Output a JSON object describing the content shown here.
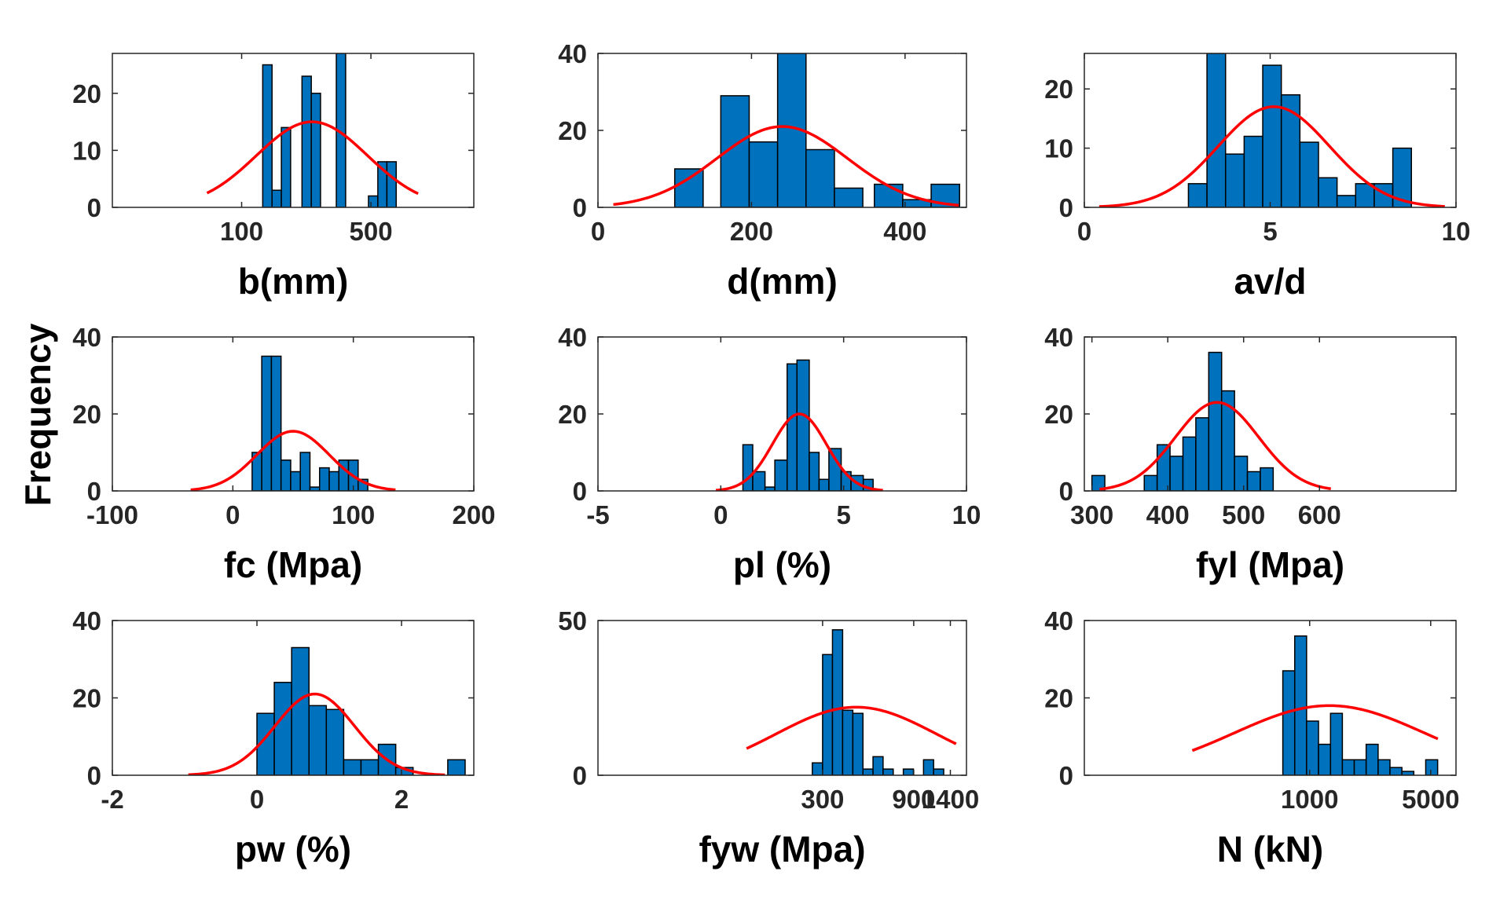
{
  "figure": {
    "ylabel": "Frequency",
    "bar_color": "#0072BD",
    "bar_edge_color": "#000000",
    "fit_color": "#FF0000",
    "axis_color": "#262626"
  },
  "chart_data": [
    {
      "type": "bar",
      "xlabel": "b(mm)",
      "xscale": "log",
      "xlim": [
        20,
        1800
      ],
      "ylim": [
        0,
        27
      ],
      "xticks": [
        100,
        500
      ],
      "xtick_labels": [
        "100",
        "500"
      ],
      "yticks": [
        0,
        10,
        20
      ],
      "bins": [
        {
          "x0": 130,
          "x1": 146,
          "count": 25
        },
        {
          "x0": 146,
          "x1": 164,
          "count": 3
        },
        {
          "x0": 164,
          "x1": 184,
          "count": 14
        },
        {
          "x0": 212,
          "x1": 238,
          "count": 23
        },
        {
          "x0": 238,
          "x1": 267,
          "count": 20
        },
        {
          "x0": 325,
          "x1": 365,
          "count": 27
        },
        {
          "x0": 485,
          "x1": 545,
          "count": 2
        },
        {
          "x0": 545,
          "x1": 610,
          "count": 8
        },
        {
          "x0": 610,
          "x1": 685,
          "count": 8
        }
      ],
      "fit": {
        "center": 240,
        "log_sigma": 0.3,
        "peak": 15,
        "x_range": [
          65,
          900
        ]
      }
    },
    {
      "type": "bar",
      "xlabel": "d(mm)",
      "xscale": "linear",
      "xlim": [
        0,
        480
      ],
      "ylim": [
        0,
        40
      ],
      "xticks": [
        0,
        200,
        400
      ],
      "xtick_labels": [
        "0",
        "200",
        "400"
      ],
      "yticks": [
        0,
        20,
        40
      ],
      "bins": [
        {
          "x0": 100,
          "x1": 137,
          "count": 10
        },
        {
          "x0": 160,
          "x1": 197,
          "count": 29
        },
        {
          "x0": 197,
          "x1": 234,
          "count": 17
        },
        {
          "x0": 234,
          "x1": 271,
          "count": 40
        },
        {
          "x0": 271,
          "x1": 308,
          "count": 15
        },
        {
          "x0": 308,
          "x1": 345,
          "count": 5
        },
        {
          "x0": 360,
          "x1": 397,
          "count": 6
        },
        {
          "x0": 397,
          "x1": 434,
          "count": 2
        },
        {
          "x0": 434,
          "x1": 471,
          "count": 6
        }
      ],
      "fit": {
        "mean": 240,
        "sigma": 85,
        "peak": 21,
        "x_range": [
          20,
          470
        ]
      }
    },
    {
      "type": "bar",
      "xlabel": "av/d",
      "xscale": "linear",
      "xlim": [
        0,
        10
      ],
      "ylim": [
        0,
        26
      ],
      "xticks": [
        0,
        5,
        10
      ],
      "xtick_labels": [
        "0",
        "5",
        "10"
      ],
      "yticks": [
        0,
        10,
        20
      ],
      "bins": [
        {
          "x0": 2.8,
          "x1": 3.3,
          "count": 4
        },
        {
          "x0": 3.3,
          "x1": 3.8,
          "count": 26
        },
        {
          "x0": 3.8,
          "x1": 4.3,
          "count": 9
        },
        {
          "x0": 4.3,
          "x1": 4.8,
          "count": 12
        },
        {
          "x0": 4.8,
          "x1": 5.3,
          "count": 24
        },
        {
          "x0": 5.3,
          "x1": 5.8,
          "count": 19
        },
        {
          "x0": 5.8,
          "x1": 6.3,
          "count": 11
        },
        {
          "x0": 6.3,
          "x1": 6.8,
          "count": 5
        },
        {
          "x0": 6.8,
          "x1": 7.3,
          "count": 2
        },
        {
          "x0": 7.3,
          "x1": 7.8,
          "count": 4
        },
        {
          "x0": 7.8,
          "x1": 8.3,
          "count": 4
        },
        {
          "x0": 8.3,
          "x1": 8.8,
          "count": 10
        }
      ],
      "fit": {
        "mean": 5.1,
        "sigma": 1.5,
        "peak": 17,
        "x_range": [
          0.4,
          9.7
        ]
      }
    },
    {
      "type": "bar",
      "xlabel": "fc (Mpa)",
      "xscale": "linear",
      "xlim": [
        -100,
        200
      ],
      "ylim": [
        0,
        40
      ],
      "xticks": [
        -100,
        0,
        100,
        200
      ],
      "xtick_labels": [
        "-100",
        "0",
        "100",
        "200"
      ],
      "yticks": [
        0,
        20,
        40
      ],
      "bins": [
        {
          "x0": 16,
          "x1": 24,
          "count": 10
        },
        {
          "x0": 24,
          "x1": 32,
          "count": 35
        },
        {
          "x0": 32,
          "x1": 40,
          "count": 35
        },
        {
          "x0": 40,
          "x1": 48,
          "count": 8
        },
        {
          "x0": 48,
          "x1": 56,
          "count": 5
        },
        {
          "x0": 56,
          "x1": 64,
          "count": 10
        },
        {
          "x0": 64,
          "x1": 72,
          "count": 1
        },
        {
          "x0": 72,
          "x1": 80,
          "count": 6
        },
        {
          "x0": 80,
          "x1": 88,
          "count": 5
        },
        {
          "x0": 88,
          "x1": 96,
          "count": 8
        },
        {
          "x0": 96,
          "x1": 104,
          "count": 8
        },
        {
          "x0": 104,
          "x1": 112,
          "count": 3
        }
      ],
      "fit": {
        "mean": 50,
        "sigma": 30,
        "peak": 15.5,
        "x_range": [
          -35,
          135
        ]
      }
    },
    {
      "type": "bar",
      "xlabel": "pl (%)",
      "xscale": "linear",
      "xlim": [
        -5,
        10
      ],
      "ylim": [
        0,
        40
      ],
      "xticks": [
        -5,
        0,
        5,
        10
      ],
      "xtick_labels": [
        "-5",
        "0",
        "5",
        "10"
      ],
      "yticks": [
        0,
        20,
        40
      ],
      "bins": [
        {
          "x0": 0.9,
          "x1": 1.3,
          "count": 12
        },
        {
          "x0": 1.3,
          "x1": 1.8,
          "count": 5
        },
        {
          "x0": 1.8,
          "x1": 2.2,
          "count": 1
        },
        {
          "x0": 2.2,
          "x1": 2.7,
          "count": 8
        },
        {
          "x0": 2.7,
          "x1": 3.1,
          "count": 33
        },
        {
          "x0": 3.1,
          "x1": 3.6,
          "count": 34
        },
        {
          "x0": 3.6,
          "x1": 4.0,
          "count": 10
        },
        {
          "x0": 4.0,
          "x1": 4.4,
          "count": 3
        },
        {
          "x0": 4.4,
          "x1": 4.9,
          "count": 11
        },
        {
          "x0": 4.9,
          "x1": 5.3,
          "count": 5
        },
        {
          "x0": 5.3,
          "x1": 5.8,
          "count": 4
        },
        {
          "x0": 5.8,
          "x1": 6.2,
          "count": 3
        }
      ],
      "fit": {
        "mean": 3.2,
        "sigma": 1.1,
        "peak": 20,
        "x_range": [
          -0.2,
          6.6
        ]
      }
    },
    {
      "type": "bar",
      "xlabel": "fyl (Mpa)",
      "xscale": "linear",
      "xlim": [
        290,
        780
      ],
      "ylim": [
        0,
        40
      ],
      "xticks": [
        300,
        400,
        500,
        600
      ],
      "xtick_labels": [
        "300",
        "400",
        "500",
        "600"
      ],
      "yticks": [
        0,
        20,
        40
      ],
      "bins": [
        {
          "x0": 300,
          "x1": 317,
          "count": 4
        },
        {
          "x0": 369,
          "x1": 386,
          "count": 4
        },
        {
          "x0": 386,
          "x1": 403,
          "count": 12
        },
        {
          "x0": 403,
          "x1": 420,
          "count": 9
        },
        {
          "x0": 420,
          "x1": 437,
          "count": 14
        },
        {
          "x0": 437,
          "x1": 454,
          "count": 19
        },
        {
          "x0": 454,
          "x1": 471,
          "count": 36
        },
        {
          "x0": 471,
          "x1": 488,
          "count": 26
        },
        {
          "x0": 488,
          "x1": 505,
          "count": 9
        },
        {
          "x0": 505,
          "x1": 522,
          "count": 5
        },
        {
          "x0": 522,
          "x1": 539,
          "count": 6
        },
        {
          "x0": 539,
          "x1": 556,
          "count": 0
        }
      ],
      "fit": {
        "mean": 465,
        "sigma": 55,
        "peak": 23,
        "x_range": [
          310,
          615
        ]
      }
    },
    {
      "type": "bar",
      "xlabel": "pw (%)",
      "xscale": "linear",
      "xlim": [
        -2,
        3.0
      ],
      "ylim": [
        0,
        40
      ],
      "xticks": [
        -2,
        0,
        2
      ],
      "xtick_labels": [
        "-2",
        "0",
        "2"
      ],
      "yticks": [
        0,
        20,
        40
      ],
      "bins": [
        {
          "x0": 0.0,
          "x1": 0.24,
          "count": 16
        },
        {
          "x0": 0.24,
          "x1": 0.48,
          "count": 24
        },
        {
          "x0": 0.48,
          "x1": 0.72,
          "count": 33
        },
        {
          "x0": 0.72,
          "x1": 0.96,
          "count": 18
        },
        {
          "x0": 0.96,
          "x1": 1.2,
          "count": 17
        },
        {
          "x0": 1.2,
          "x1": 1.44,
          "count": 4
        },
        {
          "x0": 1.44,
          "x1": 1.68,
          "count": 4
        },
        {
          "x0": 1.68,
          "x1": 1.92,
          "count": 8
        },
        {
          "x0": 1.92,
          "x1": 2.16,
          "count": 2
        },
        {
          "x0": 2.64,
          "x1": 2.88,
          "count": 4
        }
      ],
      "fit": {
        "mean": 0.8,
        "sigma": 0.55,
        "peak": 21,
        "x_range": [
          -0.95,
          2.6
        ]
      }
    },
    {
      "type": "bar",
      "xlabel": "fyw (Mpa)",
      "xscale": "log",
      "xlim": [
        20,
        1700
      ],
      "ylim": [
        0,
        50
      ],
      "xticks": [
        300,
        900,
        1400
      ],
      "xtick_labels": [
        "300",
        "900",
        "1400"
      ],
      "yticks": [
        0,
        50
      ],
      "bins": [
        {
          "x0": 265,
          "x1": 300,
          "count": 4
        },
        {
          "x0": 300,
          "x1": 338,
          "count": 39
        },
        {
          "x0": 338,
          "x1": 382,
          "count": 47
        },
        {
          "x0": 382,
          "x1": 432,
          "count": 21
        },
        {
          "x0": 432,
          "x1": 488,
          "count": 20
        },
        {
          "x0": 488,
          "x1": 551,
          "count": 2
        },
        {
          "x0": 551,
          "x1": 622,
          "count": 6
        },
        {
          "x0": 622,
          "x1": 703,
          "count": 2
        },
        {
          "x0": 703,
          "x1": 794,
          "count": 0
        },
        {
          "x0": 794,
          "x1": 897,
          "count": 2
        },
        {
          "x0": 897,
          "x1": 1013,
          "count": 0
        },
        {
          "x0": 1013,
          "x1": 1144,
          "count": 5
        },
        {
          "x0": 1144,
          "x1": 1292,
          "count": 2
        }
      ],
      "fit": {
        "center": 450,
        "log_sigma": 0.42,
        "peak": 22,
        "x_range": [
          120,
          1500
        ]
      }
    },
    {
      "type": "bar",
      "xlabel": "N (kN)",
      "xscale": "log",
      "xlim": [
        50,
        7000
      ],
      "ylim": [
        0,
        40
      ],
      "xticks": [
        1000,
        5000
      ],
      "xtick_labels": [
        "1000",
        "5000"
      ],
      "yticks": [
        0,
        20,
        40
      ],
      "bins": [
        {
          "x0": 700,
          "x1": 820,
          "count": 27
        },
        {
          "x0": 820,
          "x1": 960,
          "count": 36
        },
        {
          "x0": 960,
          "x1": 1125,
          "count": 14
        },
        {
          "x0": 1125,
          "x1": 1320,
          "count": 8
        },
        {
          "x0": 1320,
          "x1": 1545,
          "count": 16
        },
        {
          "x0": 1545,
          "x1": 1810,
          "count": 4
        },
        {
          "x0": 1810,
          "x1": 2120,
          "count": 4
        },
        {
          "x0": 2120,
          "x1": 2485,
          "count": 8
        },
        {
          "x0": 2485,
          "x1": 2910,
          "count": 4
        },
        {
          "x0": 2910,
          "x1": 3410,
          "count": 2
        },
        {
          "x0": 3410,
          "x1": 3995,
          "count": 1
        },
        {
          "x0": 4680,
          "x1": 5485,
          "count": 4
        }
      ],
      "fit": {
        "center": 1300,
        "log_sigma": 0.55,
        "peak": 18,
        "x_range": [
          210,
          5500
        ]
      }
    }
  ]
}
